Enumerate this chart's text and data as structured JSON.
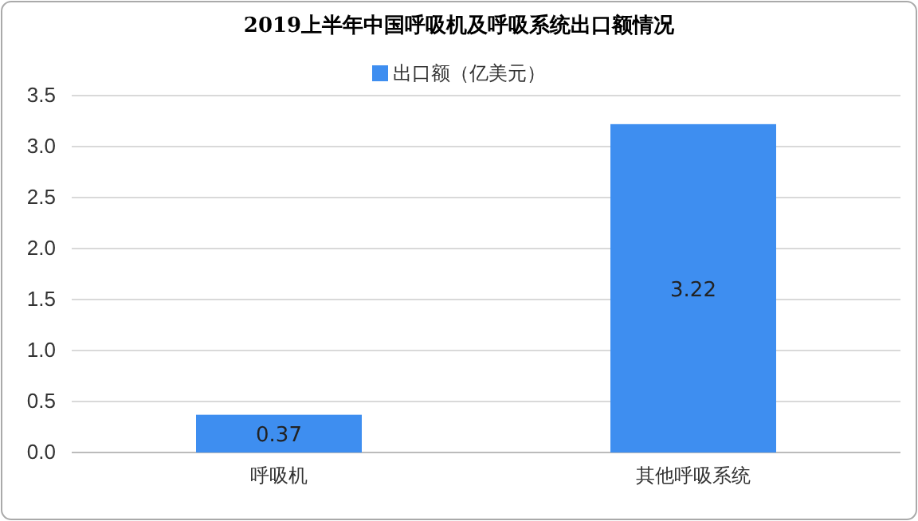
{
  "chart_data": {
    "type": "bar",
    "title": "2019上半年中国呼吸机及呼吸系统出口额情况",
    "categories": [
      "呼吸机",
      "其他呼吸系统"
    ],
    "series": [
      {
        "name": "出口额（亿美元）",
        "color": "#3e8ef0",
        "values": [
          0.37,
          3.22
        ]
      }
    ],
    "ylim": [
      0,
      3.5
    ],
    "yticks": [
      {
        "value": 0,
        "label": "0.0"
      },
      {
        "value": 0.5,
        "label": "0.5"
      },
      {
        "value": 1,
        "label": "1.0"
      },
      {
        "value": 1.5,
        "label": "1.5"
      },
      {
        "value": 2,
        "label": "2.0"
      },
      {
        "value": 2.5,
        "label": "2.5"
      },
      {
        "value": 3,
        "label": "3.0"
      },
      {
        "value": 3.5,
        "label": "3.5"
      }
    ],
    "grid": "y",
    "legend": "top",
    "data_labels": true
  }
}
